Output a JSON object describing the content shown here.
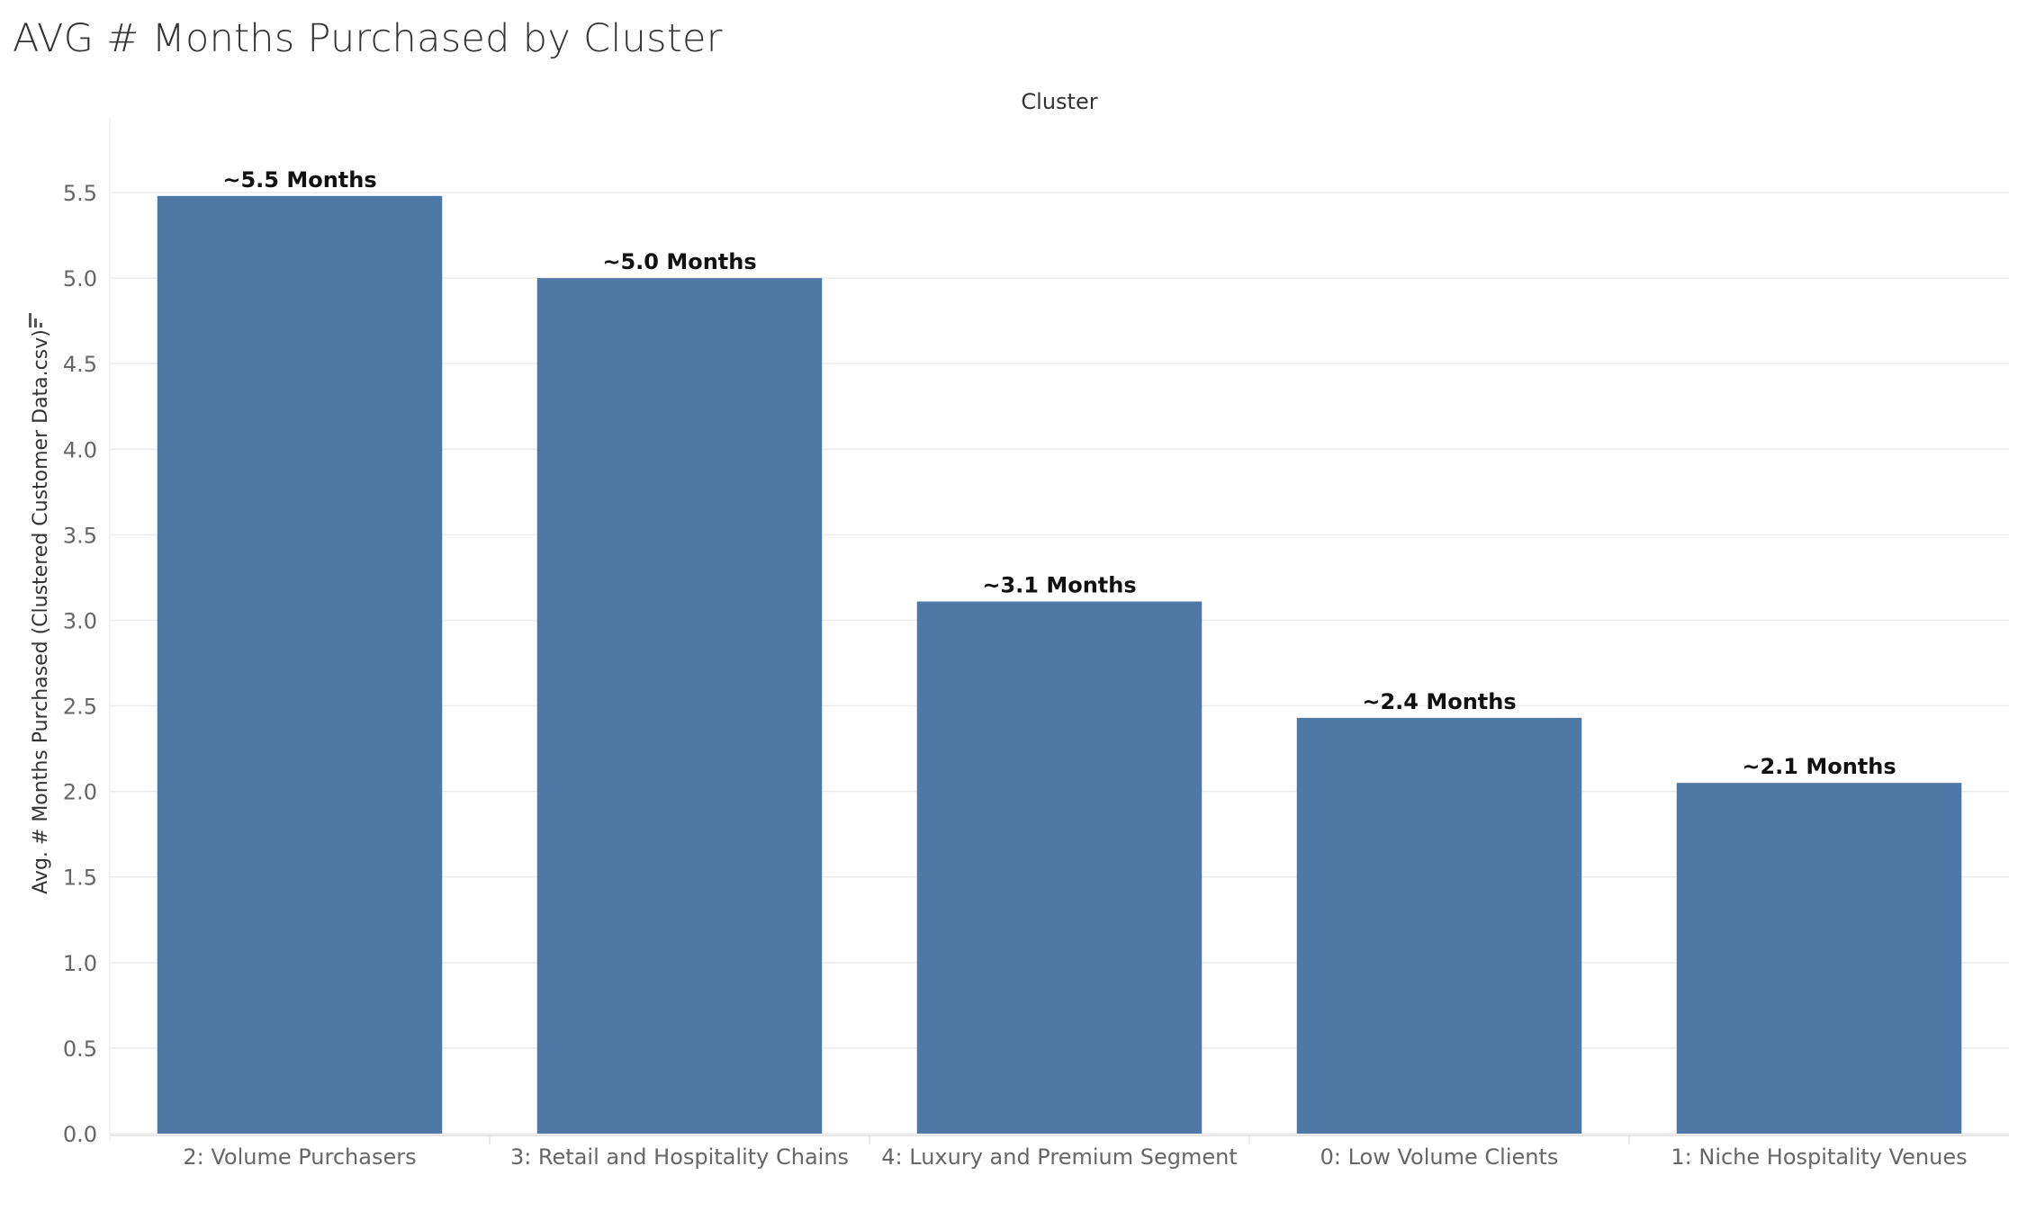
{
  "title": "AVG # Months Purchased by Cluster",
  "icons": {
    "sort": "sort-descending-icon"
  },
  "colors": {
    "bar": "#4e79a7",
    "grid": "#ececec",
    "axis_text": "#666666",
    "label_text": "#111111"
  },
  "chart_data": {
    "type": "bar",
    "title": "AVG # Months Purchased by Cluster",
    "column_header": "Cluster",
    "xlabel": "",
    "ylabel": "Avg. # Months Purchased (Clustered Customer Data.csv)",
    "categories": [
      "2: Volume Purchasers",
      "3: Retail and Hospitality Chains",
      "4: Luxury and Premium Segment",
      "0: Low Volume Clients",
      "1: Niche Hospitality Venues"
    ],
    "values": [
      5.48,
      5.0,
      3.11,
      2.43,
      2.05
    ],
    "data_labels": [
      "~5.5 Months",
      "~5.0 Months",
      "~3.1 Months",
      "~2.4 Months",
      "~2.1 Months"
    ],
    "yticks": [
      "0.0",
      "0.5",
      "1.0",
      "1.5",
      "2.0",
      "2.5",
      "3.0",
      "3.5",
      "4.0",
      "4.5",
      "5.0",
      "5.5"
    ],
    "ylim": [
      0,
      5.5
    ],
    "grid": true,
    "legend": "none"
  }
}
